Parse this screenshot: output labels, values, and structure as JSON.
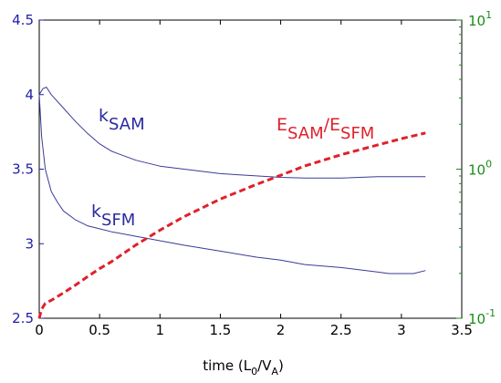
{
  "chart_data": {
    "type": "line",
    "xlabel": "time (L_0/V_A)",
    "xlim": [
      0,
      3.5
    ],
    "x_ticks": [
      "0",
      "0.5",
      "1",
      "1.5",
      "2",
      "2.5",
      "3",
      "3.5"
    ],
    "left_axis": {
      "ylim": [
        2.5,
        4.5
      ],
      "ticks": [
        "2.5",
        "3",
        "3.5",
        "4",
        "4.5"
      ],
      "color": "#1f1fa8"
    },
    "right_axis": {
      "scale": "log",
      "ylim": [
        0.1,
        10
      ],
      "ticks": [
        {
          "base": "10",
          "exp": "-1",
          "value": 0.1
        },
        {
          "base": "10",
          "exp": "0",
          "value": 1
        },
        {
          "base": "10",
          "exp": "1",
          "value": 10
        }
      ],
      "color": "#1a8c1a"
    },
    "series": [
      {
        "name": "k_SAM",
        "axis": "left",
        "color": "#3a3a9a",
        "style": "solid",
        "label": {
          "main": "k",
          "sub": "SAM"
        },
        "x": [
          0,
          0.03,
          0.06,
          0.1,
          0.2,
          0.3,
          0.4,
          0.5,
          0.6,
          0.8,
          1.0,
          1.2,
          1.5,
          1.8,
          2.0,
          2.2,
          2.5,
          2.8,
          3.0,
          3.2
        ],
        "y": [
          4.0,
          4.04,
          4.05,
          4.0,
          3.91,
          3.82,
          3.74,
          3.67,
          3.62,
          3.56,
          3.52,
          3.5,
          3.47,
          3.455,
          3.445,
          3.44,
          3.44,
          3.45,
          3.45,
          3.45
        ]
      },
      {
        "name": "k_SFM",
        "axis": "left",
        "color": "#3a3a9a",
        "style": "solid",
        "label": {
          "main": "k",
          "sub": "SFM"
        },
        "x": [
          0,
          0.02,
          0.05,
          0.1,
          0.15,
          0.2,
          0.3,
          0.4,
          0.5,
          0.6,
          0.8,
          1.0,
          1.2,
          1.5,
          1.8,
          2.0,
          2.2,
          2.5,
          2.8,
          2.9,
          3.0,
          3.1,
          3.2
        ],
        "y": [
          4.0,
          3.72,
          3.5,
          3.35,
          3.28,
          3.22,
          3.16,
          3.12,
          3.1,
          3.08,
          3.05,
          3.02,
          2.99,
          2.95,
          2.91,
          2.89,
          2.86,
          2.84,
          2.81,
          2.8,
          2.8,
          2.8,
          2.82
        ]
      },
      {
        "name": "E_SAM/E_SFM",
        "axis": "right",
        "color": "#e0202a",
        "style": "dashed",
        "label": {
          "main1": "E",
          "sub1": "SAM",
          "sep": "/E",
          "sub2": "SFM"
        },
        "x": [
          0,
          0.02,
          0.05,
          0.1,
          0.2,
          0.3,
          0.4,
          0.5,
          0.6,
          0.8,
          1.0,
          1.2,
          1.5,
          1.8,
          2.0,
          2.2,
          2.5,
          2.8,
          3.0,
          3.2
        ],
        "y": [
          0.1,
          0.115,
          0.126,
          0.132,
          0.148,
          0.167,
          0.19,
          0.215,
          0.24,
          0.31,
          0.39,
          0.48,
          0.63,
          0.79,
          0.91,
          1.05,
          1.25,
          1.45,
          1.6,
          1.75
        ]
      }
    ]
  }
}
